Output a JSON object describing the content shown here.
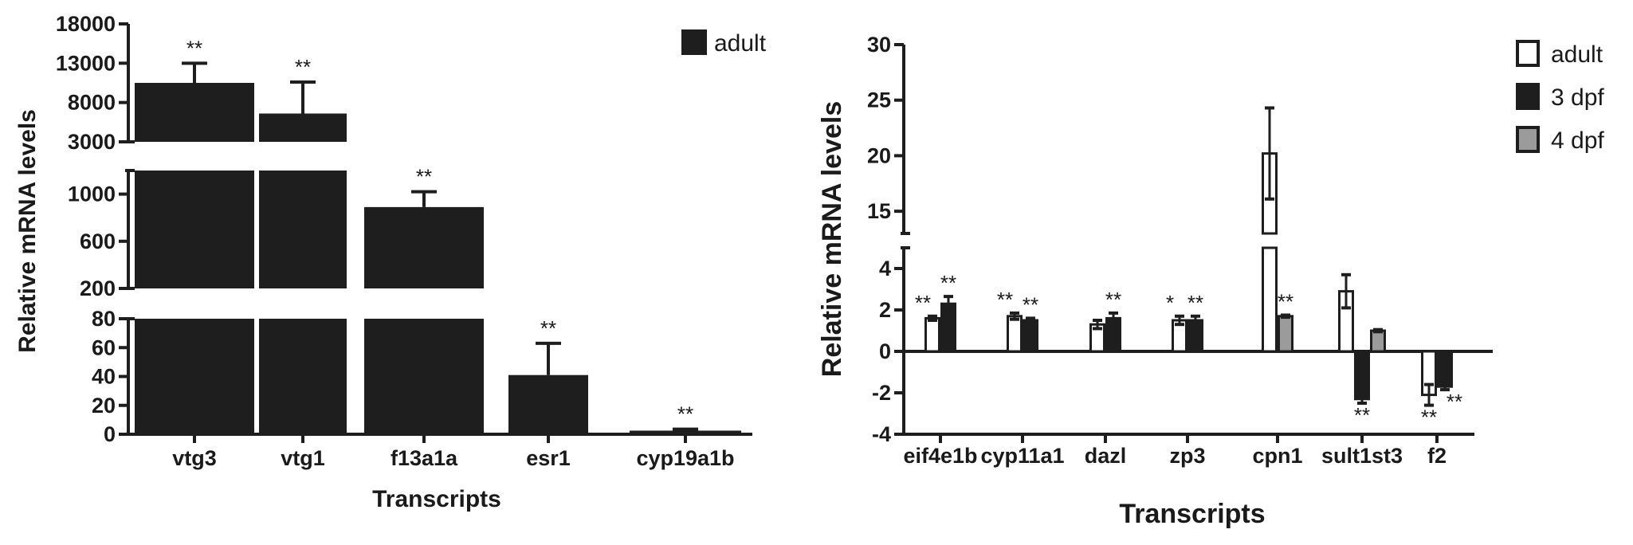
{
  "chart_data": [
    {
      "type": "bar",
      "ylabel": "Relative mRNA levels",
      "xlabel": "Transcripts",
      "categories": [
        "vtg3",
        "vtg1",
        "f13a1a",
        "esr1",
        "cyp19a1b"
      ],
      "series": [
        {
          "name": "adult",
          "color": "#1e1e1e",
          "values": [
            10500,
            6600,
            890,
            41,
            2.5
          ],
          "errors": [
            2500,
            4000,
            130,
            22,
            1
          ],
          "significance": [
            "**",
            "**",
            "**",
            "**",
            "**"
          ]
        }
      ],
      "y_axis_segments": [
        {
          "range": [
            0,
            80
          ],
          "ticks": [
            0,
            20,
            40,
            60,
            80
          ],
          "tick_labels": [
            "0",
            "20",
            "40",
            "60",
            "80"
          ]
        },
        {
          "range": [
            200,
            1200
          ],
          "ticks": [
            200,
            600,
            1000
          ],
          "tick_labels": [
            "200",
            "600",
            "1000"
          ]
        },
        {
          "range": [
            3000,
            18000
          ],
          "ticks": [
            3000,
            8000,
            13000,
            18000
          ],
          "tick_labels": [
            "3000",
            "8000",
            "13000",
            "18000"
          ]
        }
      ],
      "legend": [
        "adult"
      ],
      "legend_position": "top-right",
      "grid": false
    },
    {
      "type": "bar",
      "ylabel": "Relative mRNA levels",
      "xlabel": "Transcripts",
      "categories": [
        "eif4e1b",
        "cyp11a1",
        "dazl",
        "zp3",
        "cpn1",
        "sult1st3",
        "f2"
      ],
      "series": [
        {
          "name": "adult",
          "color": "#ffffff",
          "values": [
            1.6,
            1.7,
            1.3,
            1.5,
            20.2,
            2.9,
            -2.1
          ],
          "errors": [
            0.1,
            0.15,
            0.2,
            0.2,
            4.1,
            0.8,
            0.5
          ],
          "significance": [
            "**",
            "**",
            "",
            "*",
            "",
            "",
            "**"
          ]
        },
        {
          "name": "3 dpf",
          "color": "#1e1e1e",
          "values": [
            2.3,
            1.5,
            1.6,
            1.5,
            null,
            -2.3,
            -1.7
          ],
          "errors": [
            0.35,
            0.1,
            0.25,
            0.2,
            null,
            0.2,
            0.15
          ],
          "significance": [
            "**",
            "**",
            "**",
            "**",
            "",
            "**",
            "**"
          ]
        },
        {
          "name": "4 dpf",
          "color": "#9b9b9b",
          "values": [
            null,
            null,
            null,
            null,
            1.7,
            1.0,
            null
          ],
          "errors": [
            null,
            null,
            null,
            null,
            0.05,
            0.05,
            null
          ],
          "significance": [
            "",
            "",
            "",
            "",
            "**",
            "",
            ""
          ]
        }
      ],
      "y_axis_segments": [
        {
          "range": [
            -4,
            5
          ],
          "ticks": [
            -4,
            -2,
            0,
            2,
            4
          ],
          "tick_labels": [
            "-4",
            "-2",
            "0",
            "2",
            "4"
          ]
        },
        {
          "range": [
            13,
            30
          ],
          "ticks": [
            15,
            20,
            25,
            30
          ],
          "tick_labels": [
            "15",
            "20",
            "25",
            "30"
          ]
        }
      ],
      "legend": [
        "adult",
        "3 dpf",
        "4 dpf"
      ],
      "legend_position": "top-right",
      "grid": false
    }
  ]
}
